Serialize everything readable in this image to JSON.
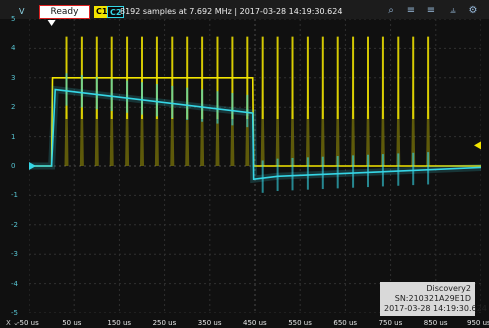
{
  "status": {
    "ready_label": "Ready"
  },
  "channels": {
    "c1": {
      "label": "C1",
      "color": "#f2e500"
    },
    "c2": {
      "label": "C2",
      "color": "#35d6e6"
    }
  },
  "acquisition_info": "8192 samples at 7.692 MHz | 2017-03-28 14:19:30.624",
  "toolbar_icons": [
    "zoom-icon",
    "cursor-a-icon",
    "cursor-b-icon",
    "measure-icon",
    "settings-icon"
  ],
  "y_axis": {
    "unit_label": "V",
    "ticks": [
      "5",
      "4",
      "3",
      "2",
      "1",
      "0",
      "-1",
      "-2",
      "-3",
      "-4",
      "-5"
    ]
  },
  "x_axis": {
    "selector_label": "X",
    "ticks": [
      "-50 us",
      "50 us",
      "150 us",
      "250 us",
      "350 us",
      "450 us",
      "550 us",
      "650 us",
      "750 us",
      "850 us",
      "950 us"
    ]
  },
  "device_box": {
    "name": "Discovery2",
    "serial": "SN:210321A29E1D",
    "timestamp": "2017-03-28 14:19:30.624"
  },
  "chart_data": {
    "type": "line",
    "x_unit": "us",
    "y_unit": "V",
    "xlim": [
      -50,
      950
    ],
    "ylim": [
      -5,
      5
    ],
    "grid": true,
    "trigger_time_us": 0,
    "trigger_level_v": 0,
    "series": [
      {
        "name": "C1",
        "color": "#f2e500",
        "points": [
          [
            -50,
            0
          ],
          [
            0,
            0
          ],
          [
            2,
            3.0
          ],
          [
            445,
            3.0
          ],
          [
            447,
            0
          ],
          [
            950,
            0
          ]
        ],
        "spike_times_us": [
          33,
          67,
          100,
          133,
          167,
          200,
          233,
          267,
          300,
          333,
          367,
          400,
          433,
          467,
          500,
          533,
          567,
          600,
          633,
          667,
          700,
          733,
          767,
          800,
          833
        ],
        "spike_high_v": 4.4,
        "spike_low_v": 1.6
      },
      {
        "name": "C2",
        "color": "#35d6e6",
        "points": [
          [
            -50,
            0
          ],
          [
            0,
            0
          ],
          [
            8,
            2.6
          ],
          [
            445,
            1.8
          ],
          [
            447,
            -0.45
          ],
          [
            500,
            -0.35
          ],
          [
            950,
            -0.05
          ]
        ]
      }
    ]
  }
}
